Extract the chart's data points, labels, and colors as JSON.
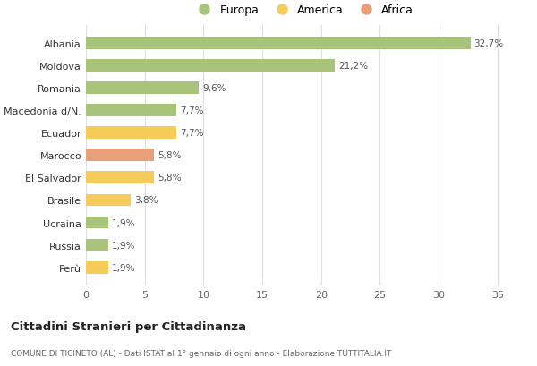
{
  "categories": [
    "Albania",
    "Moldova",
    "Romania",
    "Macedonia d/N.",
    "Ecuador",
    "Marocco",
    "El Salvador",
    "Brasile",
    "Ucraina",
    "Russia",
    "Perù"
  ],
  "values": [
    32.7,
    21.2,
    9.6,
    7.7,
    7.7,
    5.8,
    5.8,
    3.8,
    1.9,
    1.9,
    1.9
  ],
  "labels": [
    "32,7%",
    "21,2%",
    "9,6%",
    "7,7%",
    "7,7%",
    "5,8%",
    "5,8%",
    "3,8%",
    "1,9%",
    "1,9%",
    "1,9%"
  ],
  "continents": [
    "Europa",
    "Europa",
    "Europa",
    "Europa",
    "America",
    "Africa",
    "America",
    "America",
    "Europa",
    "Europa",
    "America"
  ],
  "colors": {
    "Europa": "#a8c47a",
    "America": "#f5cc5a",
    "Africa": "#e8a07a"
  },
  "legend_labels": [
    "Europa",
    "America",
    "Africa"
  ],
  "legend_colors": [
    "#a8c47a",
    "#f5cc5a",
    "#e8a07a"
  ],
  "xlim": [
    0,
    37
  ],
  "xticks": [
    0,
    5,
    10,
    15,
    20,
    25,
    30,
    35
  ],
  "title": "Cittadini Stranieri per Cittadinanza",
  "subtitle": "COMUNE DI TICINETO (AL) - Dati ISTAT al 1° gennaio di ogni anno - Elaborazione TUTTITALIA.IT",
  "bg_color": "#ffffff",
  "grid_color": "#e0e0e0"
}
